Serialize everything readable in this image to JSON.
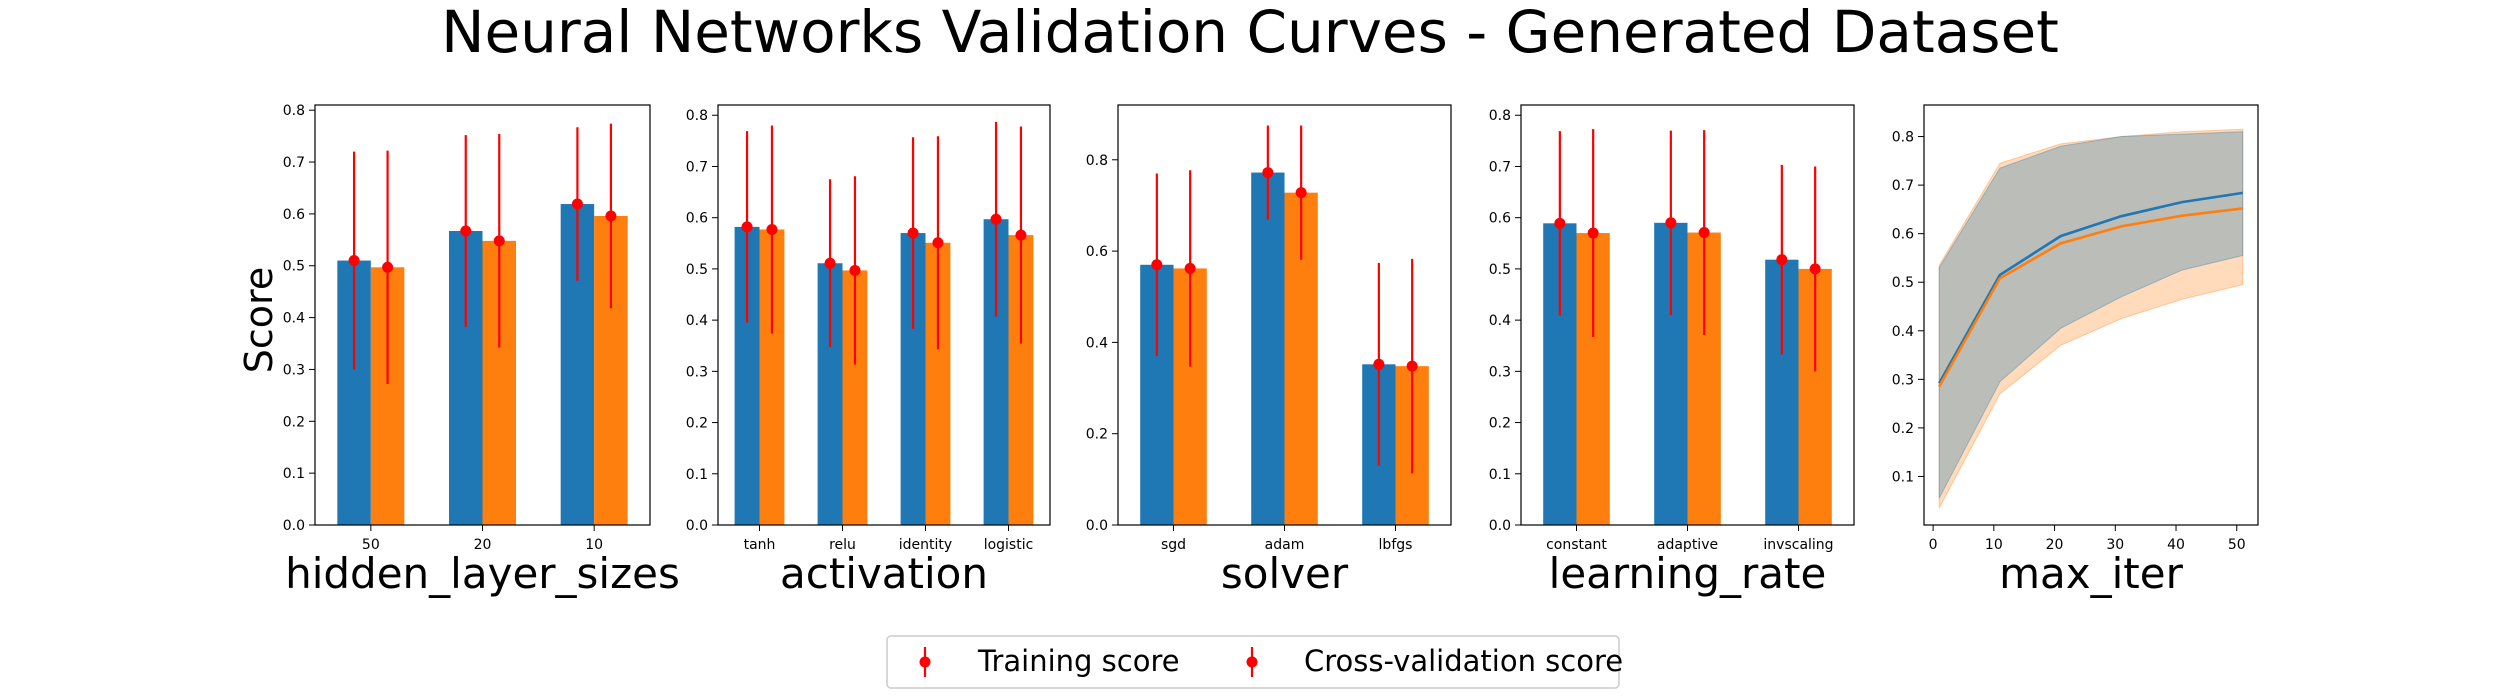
{
  "title": "Neural Networks Validation Curves - Generated Dataset",
  "ylabel": "Score",
  "legend": [
    {
      "label": "Training score",
      "color": "#ff0000"
    },
    {
      "label": "Cross-validation score",
      "color": "#ff0000"
    }
  ],
  "colors": {
    "train": "#1f77b4",
    "cv": "#ff7f0e",
    "err": "#ff0000"
  },
  "chart_data": [
    {
      "type": "bar",
      "xlabel": "hidden_layer_sizes",
      "categories": [
        "50",
        "20",
        "10"
      ],
      "ylim": [
        0,
        0.81
      ],
      "yticks": [
        0.0,
        0.1,
        0.2,
        0.3,
        0.4,
        0.5,
        0.6,
        0.7,
        0.8
      ],
      "series": [
        {
          "name": "Training score",
          "values": [
            0.51,
            0.567,
            0.619
          ],
          "err": [
            0.21,
            0.185,
            0.148
          ]
        },
        {
          "name": "Cross-validation score",
          "values": [
            0.497,
            0.548,
            0.596
          ],
          "err": [
            0.225,
            0.206,
            0.178
          ]
        }
      ]
    },
    {
      "type": "bar",
      "xlabel": "activation",
      "categories": [
        "tanh",
        "relu",
        "identity",
        "logistic"
      ],
      "ylim": [
        0,
        0.82
      ],
      "yticks": [
        0.0,
        0.1,
        0.2,
        0.3,
        0.4,
        0.5,
        0.6,
        0.7,
        0.8
      ],
      "series": [
        {
          "name": "Training score",
          "values": [
            0.582,
            0.511,
            0.57,
            0.597
          ],
          "err": [
            0.187,
            0.164,
            0.187,
            0.19
          ]
        },
        {
          "name": "Cross-validation score",
          "values": [
            0.577,
            0.497,
            0.551,
            0.566
          ],
          "err": [
            0.203,
            0.184,
            0.208,
            0.212
          ]
        }
      ]
    },
    {
      "type": "bar",
      "xlabel": "solver",
      "categories": [
        "sgd",
        "adam",
        "lbfgs"
      ],
      "ylim": [
        0,
        0.92
      ],
      "yticks": [
        0.0,
        0.2,
        0.4,
        0.6,
        0.8
      ],
      "series": [
        {
          "name": "Training score",
          "values": [
            0.57,
            0.772,
            0.352
          ],
          "err": [
            0.2,
            0.103,
            0.222
          ]
        },
        {
          "name": "Cross-validation score",
          "values": [
            0.562,
            0.728,
            0.348
          ],
          "err": [
            0.215,
            0.147,
            0.235
          ]
        }
      ]
    },
    {
      "type": "bar",
      "xlabel": "learning_rate",
      "categories": [
        "constant",
        "adaptive",
        "invscaling"
      ],
      "ylim": [
        0,
        0.82
      ],
      "yticks": [
        0.0,
        0.1,
        0.2,
        0.3,
        0.4,
        0.5,
        0.6,
        0.7,
        0.8
      ],
      "series": [
        {
          "name": "Training score",
          "values": [
            0.589,
            0.59,
            0.518
          ],
          "err": [
            0.18,
            0.18,
            0.185
          ]
        },
        {
          "name": "Cross-validation score",
          "values": [
            0.57,
            0.571,
            0.5
          ],
          "err": [
            0.203,
            0.2,
            0.2
          ]
        }
      ]
    },
    {
      "type": "line",
      "xlabel": "max_iter",
      "xlim": [
        -1.5,
        53.5
      ],
      "ylim": [
        0.0,
        0.865
      ],
      "xticks": [
        0,
        10,
        20,
        30,
        40,
        50
      ],
      "yticks": [
        0.1,
        0.2,
        0.3,
        0.4,
        0.5,
        0.6,
        0.7,
        0.8
      ],
      "x": [
        1,
        11,
        21,
        31,
        41,
        51
      ],
      "series": [
        {
          "name": "Training score",
          "values": [
            0.292,
            0.515,
            0.595,
            0.636,
            0.665,
            0.684
          ],
          "lower": [
            0.055,
            0.295,
            0.405,
            0.47,
            0.525,
            0.555
          ],
          "upper": [
            0.53,
            0.735,
            0.78,
            0.8,
            0.805,
            0.81
          ]
        },
        {
          "name": "Cross-validation score",
          "values": [
            0.285,
            0.508,
            0.58,
            0.615,
            0.637,
            0.652
          ],
          "lower": [
            0.035,
            0.27,
            0.37,
            0.425,
            0.465,
            0.495
          ],
          "upper": [
            0.535,
            0.745,
            0.785,
            0.8,
            0.81,
            0.815
          ]
        }
      ]
    }
  ]
}
